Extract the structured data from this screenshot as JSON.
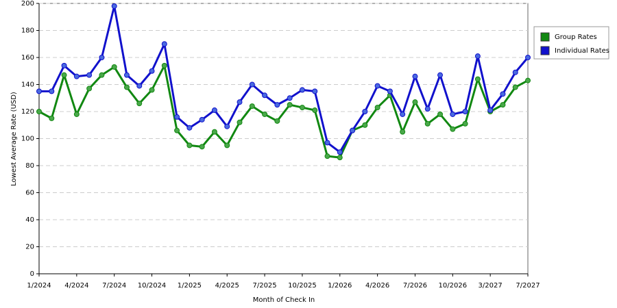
{
  "chart_data": {
    "type": "line",
    "x_label": "Month of Check In",
    "y_label": "Lowest Average Rate (USD)",
    "categories": [
      "1/2024",
      null,
      null,
      "4/2024",
      null,
      null,
      "7/2024",
      null,
      null,
      "10/2024",
      null,
      null,
      "1/2025",
      null,
      null,
      "4/2025",
      null,
      null,
      "7/2025",
      null,
      null,
      "10/2025",
      null,
      null,
      "1/2026",
      null,
      null,
      "4/2026",
      null,
      null,
      "7/2026",
      null,
      null,
      "10/2026",
      null,
      null,
      "3/2027",
      null,
      null,
      "7/2027"
    ],
    "series": [
      {
        "name": "Group Rates",
        "color": "#118811",
        "marker_color": "#4aa84a",
        "values": [
          120,
          115,
          147,
          118,
          137,
          147,
          153,
          138,
          126,
          136,
          154,
          106,
          95,
          94,
          105,
          95,
          112,
          124,
          118,
          113,
          125,
          123,
          121,
          87,
          86,
          106,
          110,
          123,
          132,
          105,
          127,
          111,
          118,
          107,
          111,
          144,
          120,
          125,
          138,
          143
        ]
      },
      {
        "name": "Individual Rates",
        "color": "#1111cc",
        "marker_color": "#4a6ae0",
        "values": [
          135,
          135,
          154,
          146,
          147,
          160,
          198,
          147,
          139,
          150,
          170,
          116,
          108,
          114,
          121,
          109,
          127,
          140,
          132,
          125,
          130,
          136,
          135,
          97,
          90,
          106,
          120,
          139,
          135,
          118,
          146,
          122,
          147,
          118,
          120,
          161,
          121,
          133,
          149,
          160
        ]
      }
    ],
    "ylim": [
      0,
      200
    ],
    "yticks": [
      0,
      20,
      40,
      60,
      80,
      100,
      120,
      140,
      160,
      180,
      200
    ],
    "grid": true,
    "legend": "right"
  }
}
